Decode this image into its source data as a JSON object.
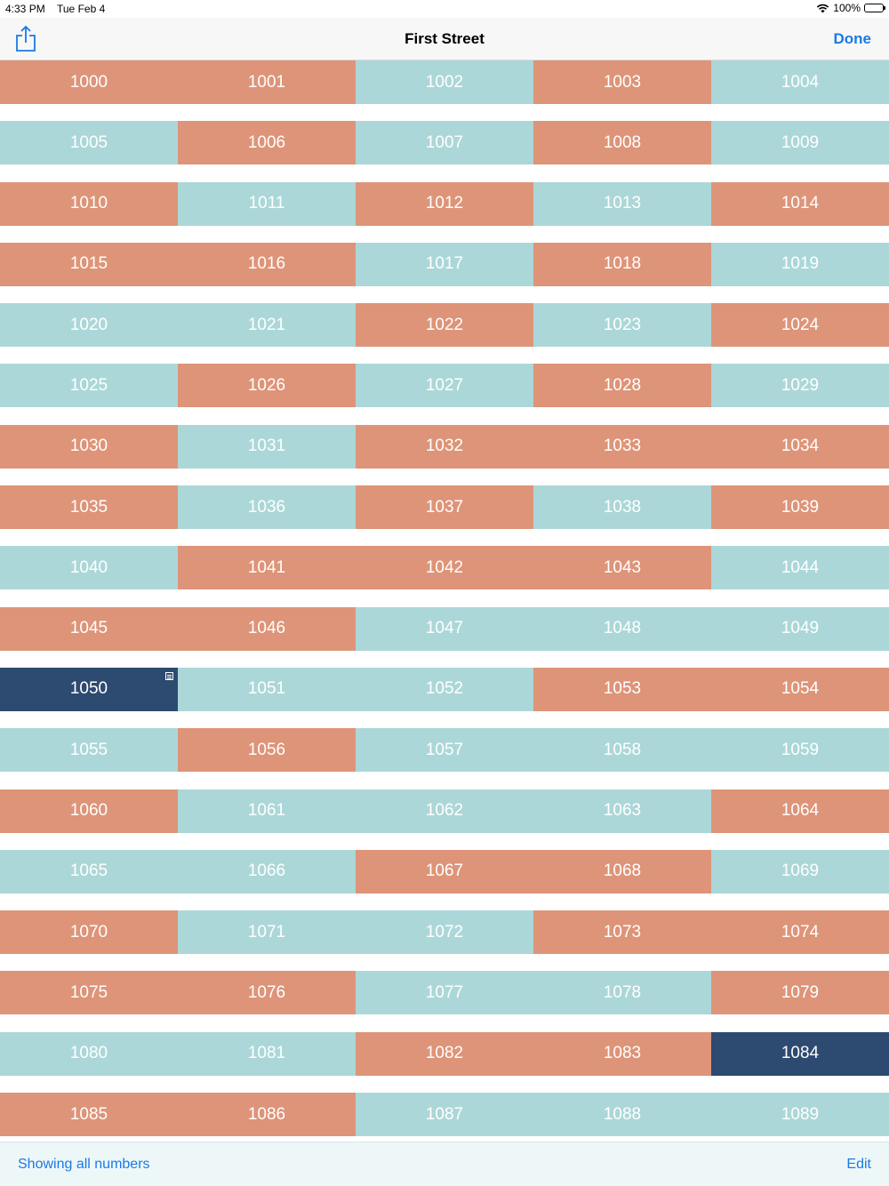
{
  "status": {
    "time": "4:33 PM",
    "date": "Tue Feb 4",
    "battery": "100%"
  },
  "nav": {
    "title": "First Street",
    "done_label": "Done",
    "share_icon": "share-icon"
  },
  "colors": {
    "orange": "#de9478",
    "teal": "#acd7d8",
    "navy": "#2d4a70",
    "accent": "#1a7ae6"
  },
  "grid": [
    [
      {
        "n": "1000",
        "c": "orange"
      },
      {
        "n": "1001",
        "c": "orange"
      },
      {
        "n": "1002",
        "c": "teal"
      },
      {
        "n": "1003",
        "c": "orange"
      },
      {
        "n": "1004",
        "c": "teal"
      }
    ],
    [
      {
        "n": "1005",
        "c": "teal"
      },
      {
        "n": "1006",
        "c": "orange"
      },
      {
        "n": "1007",
        "c": "teal"
      },
      {
        "n": "1008",
        "c": "orange"
      },
      {
        "n": "1009",
        "c": "teal"
      }
    ],
    [
      {
        "n": "1010",
        "c": "orange"
      },
      {
        "n": "1011",
        "c": "teal"
      },
      {
        "n": "1012",
        "c": "orange"
      },
      {
        "n": "1013",
        "c": "teal"
      },
      {
        "n": "1014",
        "c": "orange"
      }
    ],
    [
      {
        "n": "1015",
        "c": "orange"
      },
      {
        "n": "1016",
        "c": "orange"
      },
      {
        "n": "1017",
        "c": "teal"
      },
      {
        "n": "1018",
        "c": "orange"
      },
      {
        "n": "1019",
        "c": "teal"
      }
    ],
    [
      {
        "n": "1020",
        "c": "teal"
      },
      {
        "n": "1021",
        "c": "teal"
      },
      {
        "n": "1022",
        "c": "orange"
      },
      {
        "n": "1023",
        "c": "teal"
      },
      {
        "n": "1024",
        "c": "orange"
      }
    ],
    [
      {
        "n": "1025",
        "c": "teal"
      },
      {
        "n": "1026",
        "c": "orange"
      },
      {
        "n": "1027",
        "c": "teal"
      },
      {
        "n": "1028",
        "c": "orange"
      },
      {
        "n": "1029",
        "c": "teal"
      }
    ],
    [
      {
        "n": "1030",
        "c": "orange"
      },
      {
        "n": "1031",
        "c": "teal"
      },
      {
        "n": "1032",
        "c": "orange"
      },
      {
        "n": "1033",
        "c": "orange"
      },
      {
        "n": "1034",
        "c": "orange"
      }
    ],
    [
      {
        "n": "1035",
        "c": "orange"
      },
      {
        "n": "1036",
        "c": "teal"
      },
      {
        "n": "1037",
        "c": "orange"
      },
      {
        "n": "1038",
        "c": "teal"
      },
      {
        "n": "1039",
        "c": "orange"
      }
    ],
    [
      {
        "n": "1040",
        "c": "teal"
      },
      {
        "n": "1041",
        "c": "orange"
      },
      {
        "n": "1042",
        "c": "orange"
      },
      {
        "n": "1043",
        "c": "orange"
      },
      {
        "n": "1044",
        "c": "teal"
      }
    ],
    [
      {
        "n": "1045",
        "c": "orange"
      },
      {
        "n": "1046",
        "c": "orange"
      },
      {
        "n": "1047",
        "c": "teal"
      },
      {
        "n": "1048",
        "c": "teal"
      },
      {
        "n": "1049",
        "c": "teal"
      }
    ],
    [
      {
        "n": "1050",
        "c": "navy",
        "note": true
      },
      {
        "n": "1051",
        "c": "teal"
      },
      {
        "n": "1052",
        "c": "teal"
      },
      {
        "n": "1053",
        "c": "orange"
      },
      {
        "n": "1054",
        "c": "orange"
      }
    ],
    [
      {
        "n": "1055",
        "c": "teal"
      },
      {
        "n": "1056",
        "c": "orange"
      },
      {
        "n": "1057",
        "c": "teal"
      },
      {
        "n": "1058",
        "c": "teal"
      },
      {
        "n": "1059",
        "c": "teal"
      }
    ],
    [
      {
        "n": "1060",
        "c": "orange"
      },
      {
        "n": "1061",
        "c": "teal"
      },
      {
        "n": "1062",
        "c": "teal"
      },
      {
        "n": "1063",
        "c": "teal"
      },
      {
        "n": "1064",
        "c": "orange"
      }
    ],
    [
      {
        "n": "1065",
        "c": "teal"
      },
      {
        "n": "1066",
        "c": "teal"
      },
      {
        "n": "1067",
        "c": "orange"
      },
      {
        "n": "1068",
        "c": "orange"
      },
      {
        "n": "1069",
        "c": "teal"
      }
    ],
    [
      {
        "n": "1070",
        "c": "orange"
      },
      {
        "n": "1071",
        "c": "teal"
      },
      {
        "n": "1072",
        "c": "teal"
      },
      {
        "n": "1073",
        "c": "orange"
      },
      {
        "n": "1074",
        "c": "orange"
      }
    ],
    [
      {
        "n": "1075",
        "c": "orange"
      },
      {
        "n": "1076",
        "c": "orange"
      },
      {
        "n": "1077",
        "c": "teal"
      },
      {
        "n": "1078",
        "c": "teal"
      },
      {
        "n": "1079",
        "c": "orange"
      }
    ],
    [
      {
        "n": "1080",
        "c": "teal"
      },
      {
        "n": "1081",
        "c": "teal"
      },
      {
        "n": "1082",
        "c": "orange"
      },
      {
        "n": "1083",
        "c": "orange"
      },
      {
        "n": "1084",
        "c": "navy"
      }
    ],
    [
      {
        "n": "1085",
        "c": "orange"
      },
      {
        "n": "1086",
        "c": "orange"
      },
      {
        "n": "1087",
        "c": "teal"
      },
      {
        "n": "1088",
        "c": "teal"
      },
      {
        "n": "1089",
        "c": "teal"
      }
    ]
  ],
  "bottom": {
    "filter_label": "Showing all numbers",
    "edit_label": "Edit"
  }
}
